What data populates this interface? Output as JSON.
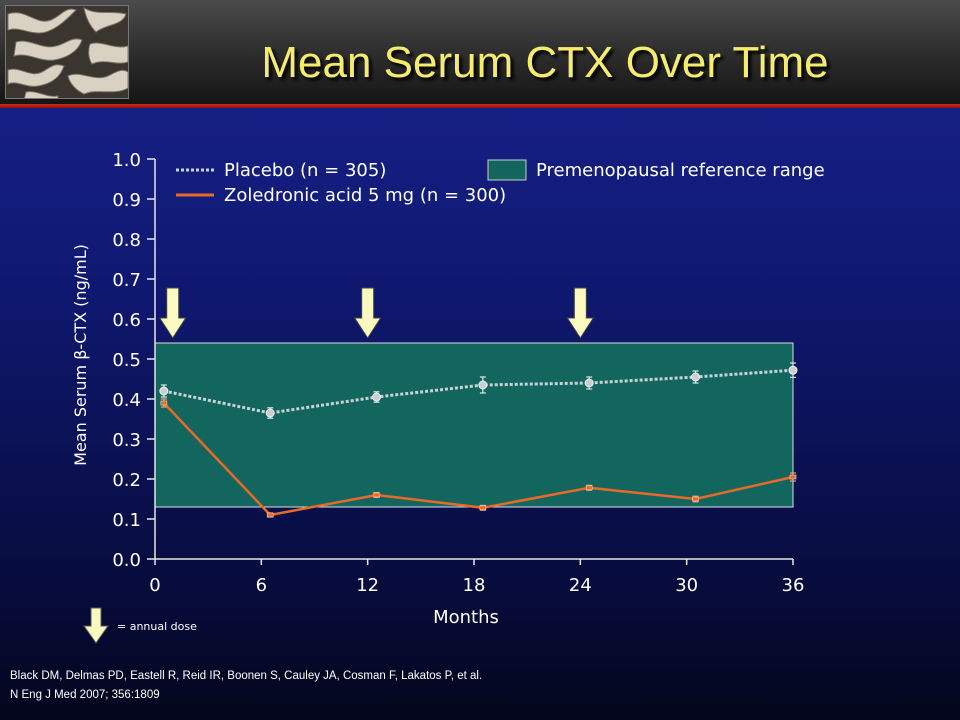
{
  "slide": {
    "title": "Mean Serum CTX Over Time"
  },
  "colors": {
    "title": "#f5ec6e",
    "placebo": "#c8d2d4",
    "zoledronic": "#e8692a",
    "reference_range": "#13665e",
    "arrow": "#fafac0",
    "header_rule": "#d52818"
  },
  "legend": {
    "placebo": "Placebo (n = 305)",
    "zoledronic": "Zoledronic acid 5 mg (n = 300)",
    "reference_range": "Premenopausal reference range",
    "annual_dose": "= annual dose"
  },
  "chart_data": {
    "type": "line",
    "xlabel": "Months",
    "ylabel": "Mean Serum β-CTX (ng/mL)",
    "xlim": [
      0,
      36
    ],
    "ylim": [
      0,
      1.0
    ],
    "x_ticks": [
      "0",
      "6",
      "12",
      "18",
      "24",
      "30",
      "36"
    ],
    "y_ticks": [
      "0.0",
      "0.1",
      "0.2",
      "0.3",
      "0.4",
      "0.5",
      "0.6",
      "0.7",
      "0.8",
      "0.9",
      "1.0"
    ],
    "reference_range": [
      0.13,
      0.54
    ],
    "dose_markers_months": [
      1,
      12,
      24
    ],
    "series": [
      {
        "name": "Placebo (n = 305)",
        "style": "dotted",
        "x": [
          0.5,
          6.5,
          12.5,
          18.5,
          24.5,
          30.5,
          36
        ],
        "values": [
          0.42,
          0.365,
          0.405,
          0.435,
          0.44,
          0.455,
          0.472
        ],
        "errors": [
          0.015,
          0.013,
          0.013,
          0.02,
          0.015,
          0.015,
          0.018
        ]
      },
      {
        "name": "Zoledronic acid 5 mg (n = 300)",
        "style": "solid",
        "x": [
          0.5,
          6.5,
          12.5,
          18.5,
          24.5,
          30.5,
          36
        ],
        "values": [
          0.39,
          0.11,
          0.16,
          0.128,
          0.178,
          0.15,
          0.205
        ],
        "errors": [
          0.01,
          0.005,
          0.006,
          0.006,
          0.006,
          0.007,
          0.01
        ]
      }
    ]
  },
  "citation": {
    "line1": "Black DM, Delmas PD, Eastell R, Reid IR, Boonen S, Cauley JA, Cosman F, Lakatos P, et al.",
    "line2": "N Eng J Med 2007; 356:1809"
  }
}
